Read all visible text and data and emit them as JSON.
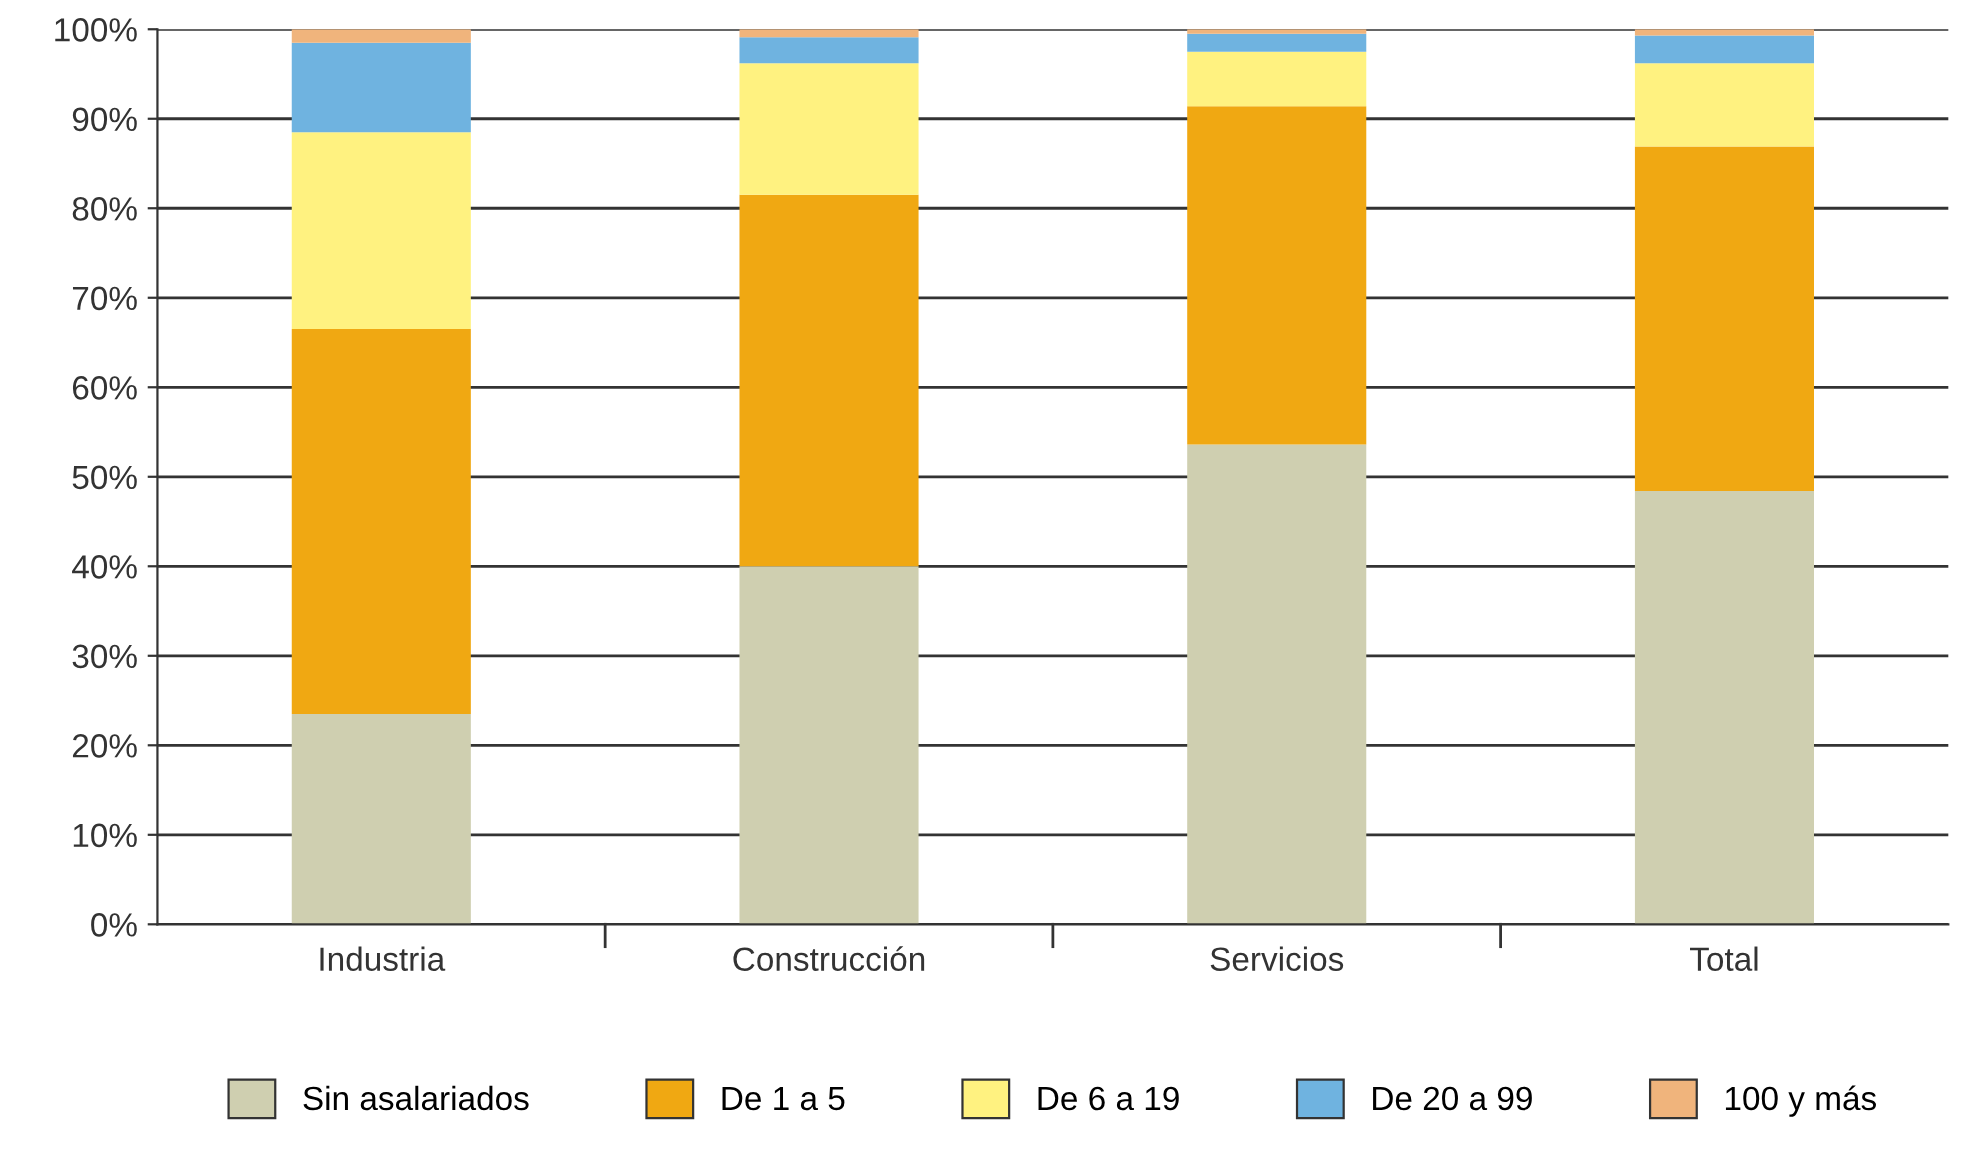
{
  "chart_data": {
    "type": "bar",
    "stacked": true,
    "categories": [
      "Industria",
      "Construcción",
      "Servicios",
      "Total"
    ],
    "series": [
      {
        "name": "Sin asalariados",
        "color": "#cfcfb0",
        "values": [
          23.5,
          40,
          53.6,
          48.4
        ]
      },
      {
        "name": "De 1 a 5",
        "color": "#f0a812",
        "values": [
          43,
          41.5,
          37.8,
          38.5
        ]
      },
      {
        "name": "De 6 a 19",
        "color": "#fff280",
        "values": [
          22,
          14.7,
          6.1,
          9.3
        ]
      },
      {
        "name": "De 20 a 99",
        "color": "#6fb3e0",
        "values": [
          10,
          2.9,
          2,
          3.1
        ]
      },
      {
        "name": "100 y más",
        "color": "#f0b47c",
        "values": [
          1.5,
          0.9,
          0.5,
          0.7
        ]
      }
    ],
    "ylim": [
      0,
      100
    ],
    "yticks": [
      {
        "value": 0,
        "label": "0%"
      },
      {
        "value": 10,
        "label": "10%"
      },
      {
        "value": 20,
        "label": "20%"
      },
      {
        "value": 30,
        "label": "30%"
      },
      {
        "value": 40,
        "label": "40%"
      },
      {
        "value": 50,
        "label": "50%"
      },
      {
        "value": 60,
        "label": "60%"
      },
      {
        "value": 70,
        "label": "70%"
      },
      {
        "value": 80,
        "label": "80%"
      },
      {
        "value": 90,
        "label": "90%"
      },
      {
        "value": 100,
        "label": "100%"
      }
    ],
    "grid": "y",
    "legend": "bottom"
  }
}
